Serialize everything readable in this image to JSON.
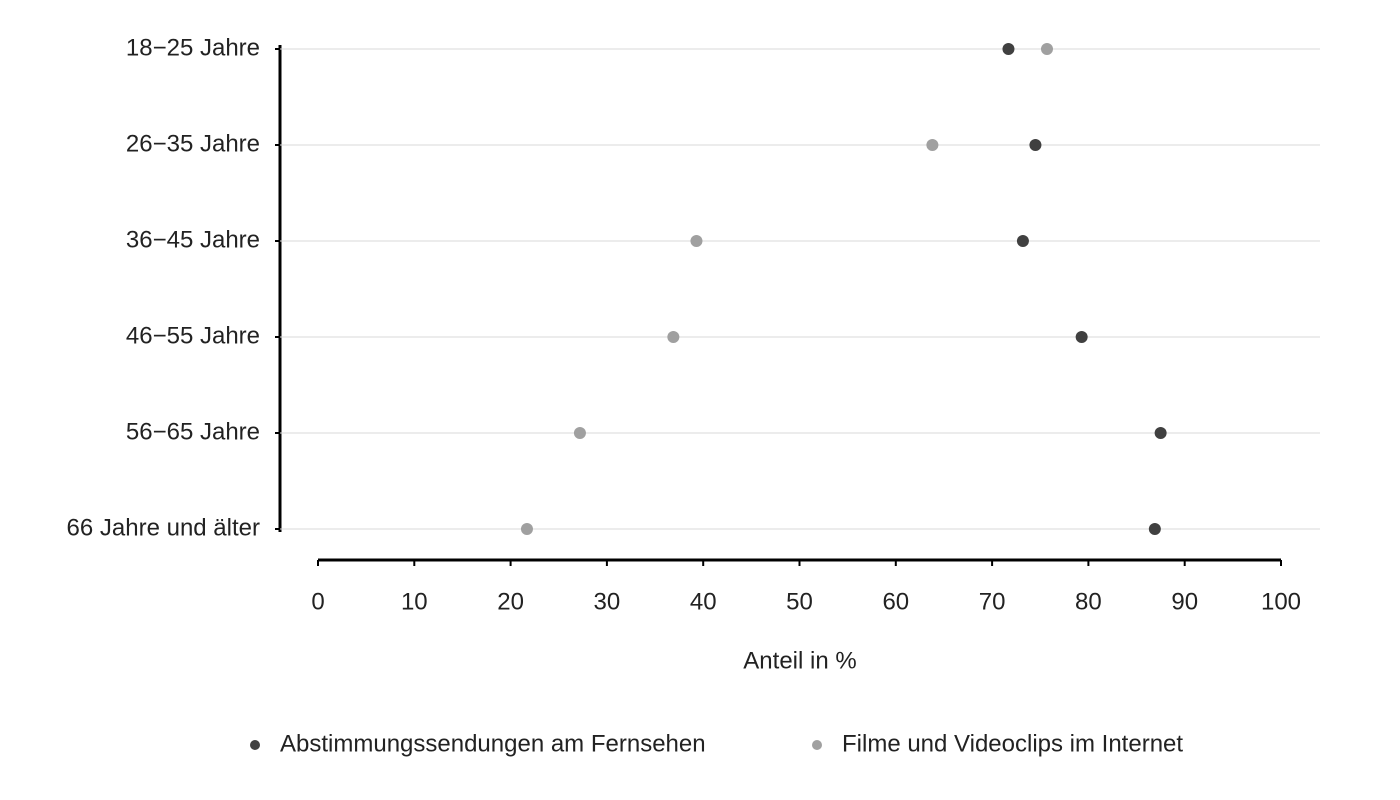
{
  "chart_data": {
    "type": "dot",
    "categories": [
      "18−25 Jahre",
      "26−35 Jahre",
      "36−45 Jahre",
      "46−55 Jahre",
      "56−65 Jahre",
      "66 Jahre und älter"
    ],
    "series": [
      {
        "name": "Abstimmungssendungen am Fernsehen",
        "color": "#404040",
        "values": [
          71.7,
          74.5,
          73.2,
          79.3,
          87.5,
          86.9
        ]
      },
      {
        "name": "Filme und Videoclips im Internet",
        "color": "#a0a0a0",
        "values": [
          75.7,
          63.8,
          39.3,
          36.9,
          27.2,
          21.7
        ]
      }
    ],
    "xlabel": "Anteil in %",
    "xlim": [
      0,
      100
    ],
    "xticks": [
      0,
      10,
      20,
      30,
      40,
      50,
      60,
      70,
      80,
      90,
      100
    ],
    "grid": true,
    "legend": "bottom"
  }
}
